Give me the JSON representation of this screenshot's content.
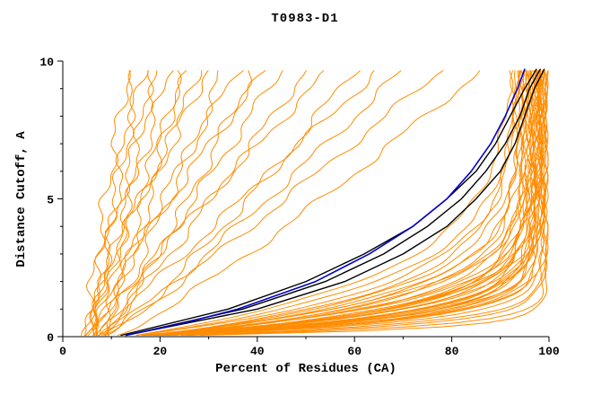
{
  "chart_data": {
    "type": "line",
    "title": "T0983-D1",
    "xlabel": "Percent of Residues (CA)",
    "ylabel": "Distance Cutoff, A",
    "xlim": [
      0,
      100
    ],
    "ylim": [
      0,
      10
    ],
    "x_major_ticks": [
      0,
      20,
      40,
      60,
      80,
      100
    ],
    "x_minor_ticks": [
      10,
      30,
      50,
      70,
      90
    ],
    "y_major_ticks": [
      0,
      5,
      10
    ],
    "y_minor_ticks": [
      1,
      2,
      3,
      4,
      6,
      7,
      8,
      9
    ],
    "grid": false,
    "legend": null,
    "colors": {
      "orange": "#FF8C00",
      "black": "#000000",
      "blue": "#0000CC",
      "axis": "#000000",
      "background": "#FFFFFF"
    },
    "y_range_drawn": [
      0.05,
      9.7
    ],
    "orange_curves": {
      "saturating_model": "x(y) = xtop - (xtop - x0) * exp(-k*y)",
      "saturating_params_x0_xtop_k": [
        [
          14,
          99.4,
          3.0
        ],
        [
          15,
          99.2,
          2.5
        ],
        [
          13,
          99.1,
          4.0
        ],
        [
          16,
          98.9,
          2.2
        ],
        [
          13,
          99.3,
          1.9
        ],
        [
          15,
          99.0,
          1.6
        ],
        [
          14,
          98.8,
          1.4
        ],
        [
          16,
          98.6,
          1.2
        ],
        [
          12,
          98.5,
          1.0
        ],
        [
          17,
          98.4,
          0.9
        ],
        [
          13,
          98.3,
          1.7
        ],
        [
          15,
          98.2,
          1.3
        ],
        [
          14,
          98.0,
          1.1
        ],
        [
          16,
          97.9,
          0.8
        ],
        [
          12,
          97.8,
          1.5
        ],
        [
          18,
          97.7,
          1.2
        ],
        [
          13,
          97.6,
          0.7
        ],
        [
          15,
          97.5,
          1.8
        ],
        [
          14,
          97.4,
          1.0
        ],
        [
          17,
          97.2,
          1.4
        ],
        [
          12,
          97.0,
          0.9
        ],
        [
          16,
          96.8,
          1.6
        ],
        [
          13,
          96.6,
          1.1
        ],
        [
          15,
          96.4,
          0.75
        ],
        [
          14,
          96.2,
          1.3
        ],
        [
          18,
          96.0,
          0.95
        ],
        [
          12,
          95.8,
          1.5
        ],
        [
          16,
          95.6,
          0.65
        ],
        [
          13,
          95.4,
          1.2
        ],
        [
          15,
          95.2,
          0.85
        ],
        [
          14,
          95.0,
          1.05
        ],
        [
          17,
          94.8,
          0.6
        ],
        [
          12,
          94.6,
          1.35
        ],
        [
          15,
          94.4,
          0.7
        ],
        [
          13,
          94.2,
          0.5
        ],
        [
          16,
          94.0,
          1.0
        ],
        [
          14,
          93.8,
          0.55
        ],
        [
          15,
          93.5,
          0.8
        ],
        [
          13,
          93.2,
          0.45
        ],
        [
          16,
          93.0,
          0.6
        ]
      ],
      "power_model": "x(y) = x0 + (xtop - x0) * (y/9.7)^p",
      "power_params_x0_xtop_p": [
        [
          5,
          13.5,
          1.2
        ],
        [
          6,
          15,
          0.9
        ],
        [
          5,
          16.5,
          1.1
        ],
        [
          7,
          18,
          0.8
        ],
        [
          6,
          20,
          1.3
        ],
        [
          5,
          22,
          1.0
        ],
        [
          8,
          24,
          0.85
        ],
        [
          6,
          26,
          1.15
        ],
        [
          7,
          28,
          0.95
        ],
        [
          5,
          30,
          1.25
        ],
        [
          8,
          33,
          0.9
        ],
        [
          6,
          36,
          1.1
        ],
        [
          7,
          39,
          0.8
        ],
        [
          6,
          42,
          1.2
        ],
        [
          8,
          45,
          1.0
        ],
        [
          7,
          50,
          0.9
        ],
        [
          6,
          55,
          1.1
        ],
        [
          9,
          60,
          0.85
        ],
        [
          7,
          65,
          1.0
        ],
        [
          8,
          70,
          0.9
        ],
        [
          9,
          78,
          0.95
        ],
        [
          10,
          86,
          0.85
        ]
      ]
    },
    "black_curves": {
      "points_x_y": [
        [
          [
            13,
            0.05
          ],
          [
            40,
            1
          ],
          [
            58,
            2
          ],
          [
            70,
            3
          ],
          [
            79,
            4
          ],
          [
            85,
            5
          ],
          [
            90,
            6
          ],
          [
            93,
            7
          ],
          [
            95,
            8
          ],
          [
            97,
            9
          ],
          [
            99,
            9.7
          ]
        ],
        [
          [
            13,
            0.05
          ],
          [
            37,
            1
          ],
          [
            54,
            2
          ],
          [
            66,
            3
          ],
          [
            75,
            4
          ],
          [
            82,
            5
          ],
          [
            87,
            6
          ],
          [
            91,
            7
          ],
          [
            94,
            8
          ],
          [
            96,
            9
          ],
          [
            98.2,
            9.7
          ]
        ],
        [
          [
            12,
            0.05
          ],
          [
            34,
            1
          ],
          [
            50,
            2
          ],
          [
            62,
            3
          ],
          [
            72,
            4
          ],
          [
            79,
            5
          ],
          [
            85,
            6
          ],
          [
            89,
            7
          ],
          [
            92,
            8
          ],
          [
            95,
            9
          ],
          [
            97.4,
            9.7
          ]
        ]
      ]
    },
    "blue_curves": {
      "points_x_y": [
        [
          [
            13,
            0.05
          ],
          [
            25,
            0.5
          ],
          [
            36,
            1
          ],
          [
            52,
            2
          ],
          [
            63,
            3
          ],
          [
            72,
            4
          ],
          [
            79,
            5
          ],
          [
            84,
            6
          ],
          [
            88,
            7
          ],
          [
            91,
            8
          ],
          [
            93.5,
            9
          ],
          [
            95,
            9.7
          ]
        ]
      ]
    }
  }
}
